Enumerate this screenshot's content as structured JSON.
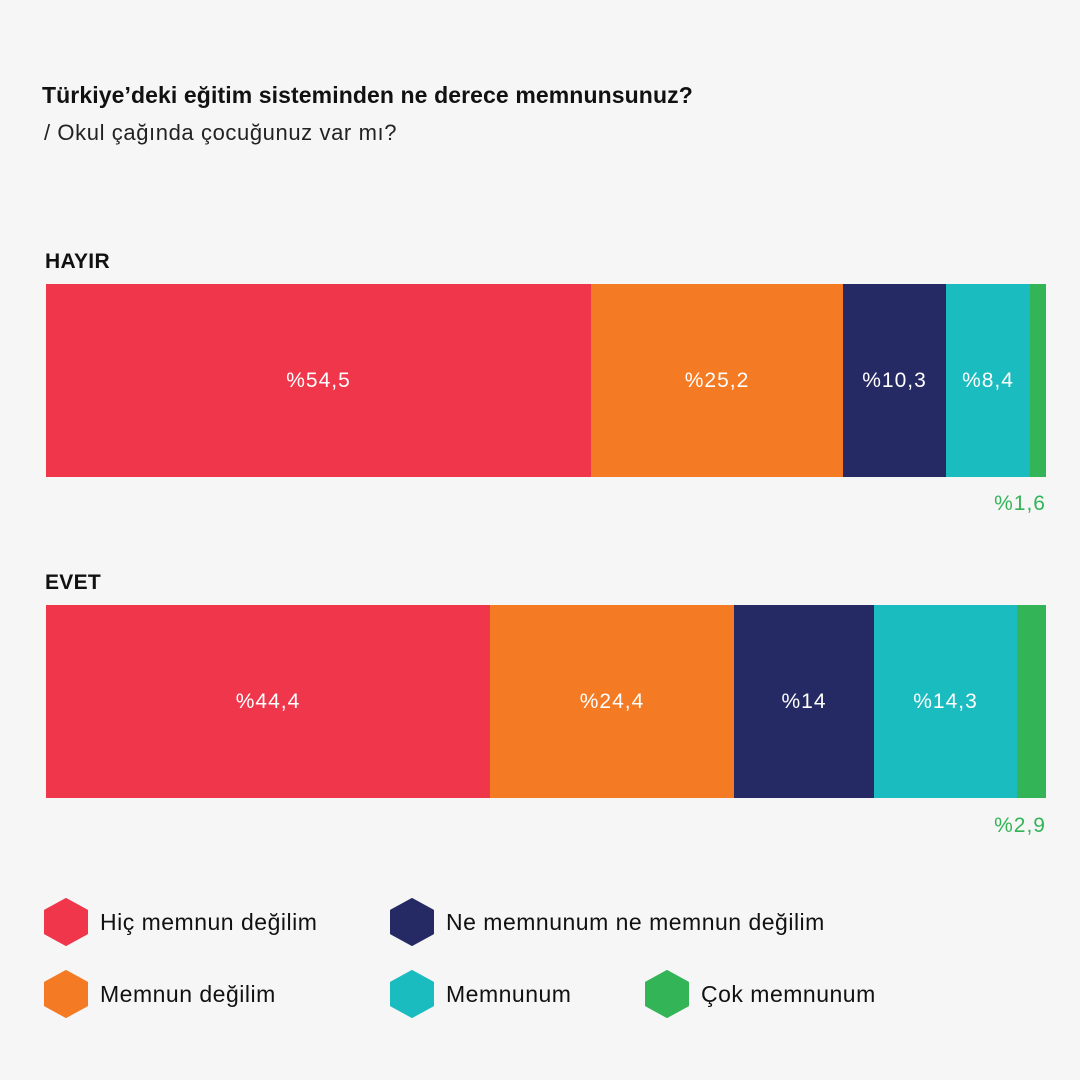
{
  "header": {
    "title": "Türkiye’deki eğitim sisteminden ne derece memnunsunuz?",
    "subtitle": "/ Okul çağında çocuğunuz var mı?"
  },
  "chart_data": {
    "type": "bar",
    "orientation": "horizontal-stacked-100",
    "title": "Türkiye’deki eğitim sisteminden ne derece memnunsunuz?",
    "subtitle": "/ Okul çağında çocuğunuz var mı?",
    "categories": [
      "HAYIR",
      "EVET"
    ],
    "series": [
      {
        "name": "Hiç memnun değilim",
        "color": "#ef364b",
        "values": [
          54.5,
          44.4
        ],
        "labels": [
          "%54,5",
          "%44,4"
        ]
      },
      {
        "name": "Memnun değilim",
        "color": "#f47a24",
        "values": [
          25.2,
          24.4
        ],
        "labels": [
          "%25,2",
          "%24,4"
        ]
      },
      {
        "name": "Ne memnunum ne memnun değilim",
        "color": "#262a64",
        "values": [
          10.3,
          14
        ],
        "labels": [
          "%10,3",
          "%14"
        ]
      },
      {
        "name": "Memnunum",
        "color": "#1bbcbf",
        "values": [
          8.4,
          14.3
        ],
        "labels": [
          "%8,4",
          "%14,3"
        ]
      },
      {
        "name": "Çok memnunum",
        "color": "#33b457",
        "values": [
          1.6,
          2.9
        ],
        "labels": [
          "%1,6",
          "%2,9"
        ]
      }
    ],
    "xlim": [
      0,
      100
    ],
    "legend_position": "bottom"
  }
}
